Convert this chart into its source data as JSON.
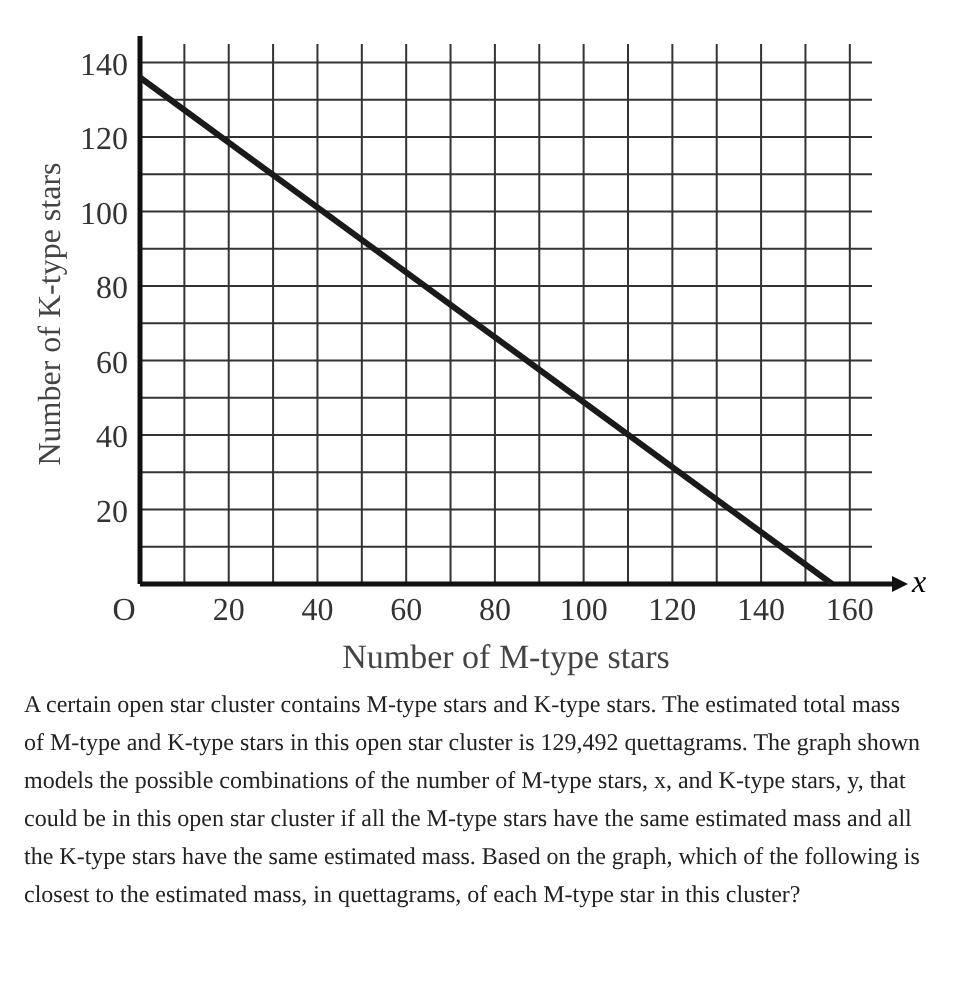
{
  "chart_data": {
    "type": "line",
    "xlabel": "Number of M-type stars",
    "ylabel": "Number of K-type stars",
    "series": [
      {
        "x": [
          0,
          156
        ],
        "values": [
          136,
          0
        ],
        "color": "#1a1a1a"
      }
    ],
    "xlim": [
      0,
      165
    ],
    "ylim": [
      0,
      145
    ],
    "xticks": [
      {
        "value": 0,
        "label": "O"
      },
      {
        "value": 10,
        "label": null
      },
      20,
      {
        "value": 30,
        "label": null
      },
      40,
      {
        "value": 50,
        "label": null
      },
      60,
      {
        "value": 70,
        "label": null
      },
      80,
      {
        "value": 90,
        "label": null
      },
      100,
      {
        "value": 110,
        "label": null
      },
      120,
      {
        "value": 130,
        "label": null
      },
      140,
      {
        "value": 150,
        "label": null
      },
      160
    ],
    "yticks": [
      {
        "value": 10,
        "label": null
      },
      20,
      {
        "value": 30,
        "label": null
      },
      40,
      {
        "value": 50,
        "label": null
      },
      60,
      {
        "value": 70,
        "label": null
      },
      80,
      {
        "value": 90,
        "label": null
      },
      100,
      {
        "value": 110,
        "label": null
      },
      120,
      {
        "value": 130,
        "label": null
      },
      140
    ],
    "grid": true,
    "marker": "none",
    "line_style": "solid",
    "annotations": [
      "x",
      "A certain open star cluster contains M-type stars and K-type stars. The estimated total mass of M-type and K-type stars in this open star cluster is 129,492 quettagrams. The graph shown models the possible combinations of the number of M-type stars, x, and K-type stars, y, that could be in this open star cluster if all the M-type stars have the same estimated mass and all the K-type stars have the same estimated mass. Based on the graph, which of the following is closest to the estimated mass, in quettagrams, of each M-type star in this cluster?"
    ]
  }
}
